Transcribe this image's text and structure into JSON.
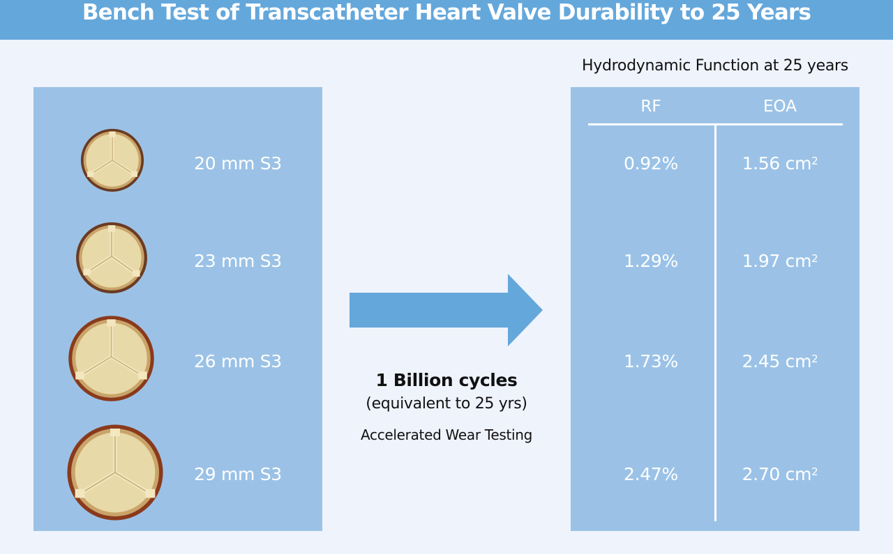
{
  "header": {
    "title": "Bench Test of Transcatheter Heart Valve Durability to 25 Years"
  },
  "colors": {
    "header_bg": "#64a7db",
    "page_bg": "#eff3fb",
    "panel_bg": "#9bc2e6",
    "arrow": "#64a7db",
    "valve_tissue": "#e8d9a8",
    "valve_frame": "#8a5a2e"
  },
  "left_panel": {
    "valves": [
      {
        "label": "20 mm S3",
        "icon": "heart-valve-photo"
      },
      {
        "label": "23 mm S3",
        "icon": "heart-valve-photo"
      },
      {
        "label": "26 mm S3",
        "icon": "heart-valve-photo"
      },
      {
        "label": "29 mm S3",
        "icon": "heart-valve-photo"
      }
    ]
  },
  "middle": {
    "arrow_icon": "right-arrow",
    "title": "1 Billion cycles",
    "subtitle": "(equivalent to 25 yrs)",
    "caption": "Accelerated Wear Testing"
  },
  "right_panel": {
    "title": "Hydrodynamic Function at 25 years",
    "columns": [
      "RF",
      "EOA"
    ],
    "rows": [
      {
        "rf": "0.92%",
        "eoa_value": "1.56 cm",
        "eoa_exp": "2"
      },
      {
        "rf": "1.29%",
        "eoa_value": "1.97 cm",
        "eoa_exp": "2"
      },
      {
        "rf": "1.73%",
        "eoa_value": "2.45 cm",
        "eoa_exp": "2"
      },
      {
        "rf": "2.47%",
        "eoa_value": "2.70 cm",
        "eoa_exp": "2"
      }
    ]
  }
}
